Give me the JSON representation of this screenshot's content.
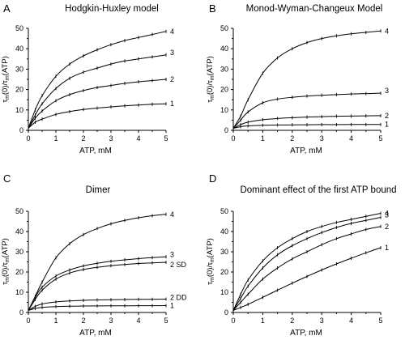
{
  "chart_data": [
    {
      "type": "line",
      "panel": "A",
      "title": "Hodgkin-Huxley model",
      "xlabel": "ATP, mM",
      "ylabel_main": "τ",
      "ylabel_sub1": "m",
      "ylabel_mid": "(0)/τ",
      "ylabel_sub2": "m",
      "ylabel_end": "(ATP)",
      "xlim": [
        0,
        5
      ],
      "ylim": [
        0,
        50
      ],
      "xticks": [
        "0",
        "1",
        "2",
        "3",
        "4",
        "5"
      ],
      "yticks": [
        "0",
        "10",
        "20",
        "30",
        "40",
        "50"
      ],
      "series": [
        {
          "name": "4",
          "x": [
            0,
            0.25,
            0.5,
            1,
            1.5,
            2,
            2.5,
            3,
            3.5,
            4,
            4.5,
            5
          ],
          "y": [
            1,
            10,
            17,
            26.5,
            32.5,
            36.5,
            39.5,
            42,
            44,
            45.5,
            47,
            48.5
          ]
        },
        {
          "name": "3",
          "x": [
            0,
            0.25,
            0.5,
            1,
            1.5,
            2,
            2.5,
            3,
            3.5,
            4,
            4.5,
            5
          ],
          "y": [
            1,
            7.5,
            13,
            20.5,
            25.5,
            28.5,
            30.5,
            32.5,
            34,
            35,
            36,
            37
          ]
        },
        {
          "name": "2",
          "x": [
            0,
            0.25,
            0.5,
            1,
            1.5,
            2,
            2.5,
            3,
            3.5,
            4,
            4.5,
            5
          ],
          "y": [
            1,
            6,
            9.5,
            14.5,
            17.5,
            19.5,
            21,
            22,
            23,
            23.8,
            24.4,
            25
          ]
        },
        {
          "name": "1",
          "x": [
            0,
            0.25,
            0.5,
            1,
            1.5,
            2,
            2.5,
            3,
            3.5,
            4,
            4.5,
            5
          ],
          "y": [
            1,
            4,
            5.5,
            7.8,
            9.2,
            10.2,
            10.9,
            11.5,
            12,
            12.4,
            12.8,
            13
          ]
        }
      ]
    },
    {
      "type": "line",
      "panel": "B",
      "title": "Monod-Wyman-Changeux Model",
      "xlabel": "ATP, mM",
      "ylabel_main": "τ",
      "ylabel_sub1": "m",
      "ylabel_mid": "(0)/τ",
      "ylabel_sub2": "m",
      "ylabel_end": "(ATP)",
      "xlim": [
        0,
        5
      ],
      "ylim": [
        0,
        50
      ],
      "xticks": [
        "0",
        "1",
        "2",
        "3",
        "4",
        "5"
      ],
      "yticks": [
        "0",
        "10",
        "20",
        "30",
        "40",
        "50"
      ],
      "series": [
        {
          "name": "4",
          "x": [
            0,
            0.25,
            0.5,
            1,
            1.5,
            2,
            2.5,
            3,
            3.5,
            4,
            4.5,
            5
          ],
          "y": [
            1,
            7,
            15,
            28,
            35.5,
            40,
            43,
            45,
            46.3,
            47.3,
            48,
            48.7
          ]
        },
        {
          "name": "3",
          "x": [
            0,
            0.25,
            0.5,
            1,
            1.5,
            2,
            2.5,
            3,
            3.5,
            4,
            4.5,
            5
          ],
          "y": [
            1,
            5,
            9,
            13.5,
            15.3,
            16.2,
            16.8,
            17.2,
            17.5,
            17.8,
            18,
            18.2
          ]
        },
        {
          "name": "2",
          "x": [
            0,
            0.25,
            0.5,
            1,
            1.5,
            2,
            2.5,
            3,
            3.5,
            4,
            4.5,
            5
          ],
          "y": [
            1,
            2.8,
            4,
            5.2,
            5.8,
            6.2,
            6.5,
            6.7,
            6.9,
            7,
            7.1,
            7.2
          ]
        },
        {
          "name": "1",
          "x": [
            0,
            0.25,
            0.5,
            1,
            1.5,
            2,
            2.5,
            3,
            3.5,
            4,
            4.5,
            5
          ],
          "y": [
            1,
            1.8,
            2.2,
            2.5,
            2.6,
            2.7,
            2.75,
            2.8,
            2.8,
            2.85,
            2.85,
            2.9
          ]
        }
      ]
    },
    {
      "type": "line",
      "panel": "C",
      "title": "Dimer",
      "xlabel": "ATP, mM",
      "ylabel_main": "τ",
      "ylabel_sub1": "m",
      "ylabel_mid": "(0)/τ",
      "ylabel_sub2": "m",
      "ylabel_end": "(ATP)",
      "xlim": [
        0,
        5
      ],
      "ylim": [
        0,
        50
      ],
      "xticks": [
        "0",
        "1",
        "2",
        "3",
        "4",
        "5"
      ],
      "yticks": [
        "0",
        "10",
        "20",
        "30",
        "40",
        "50"
      ],
      "series": [
        {
          "name": "4",
          "x": [
            0,
            0.25,
            0.5,
            1,
            1.5,
            2,
            2.5,
            3,
            3.5,
            4,
            4.5,
            5
          ],
          "y": [
            1,
            8,
            15,
            27,
            34,
            38.5,
            41.5,
            43.8,
            45.5,
            46.8,
            47.8,
            48.5
          ]
        },
        {
          "name": "3",
          "x": [
            0,
            0.25,
            0.5,
            1,
            1.5,
            2,
            2.5,
            3,
            3.5,
            4,
            4.5,
            5
          ],
          "y": [
            1,
            7.5,
            12.5,
            18,
            21,
            23,
            24.3,
            25.3,
            26,
            26.6,
            27.1,
            27.5
          ]
        },
        {
          "name": "2 SD",
          "x": [
            0,
            0.25,
            0.5,
            1,
            1.5,
            2,
            2.5,
            3,
            3.5,
            4,
            4.5,
            5
          ],
          "y": [
            1,
            6.5,
            11,
            16.5,
            19.5,
            21.2,
            22.3,
            23.1,
            23.7,
            24.2,
            24.5,
            24.8
          ]
        },
        {
          "name": "2 DD",
          "x": [
            0,
            0.25,
            0.5,
            1,
            1.5,
            2,
            2.5,
            3,
            3.5,
            4,
            4.5,
            5
          ],
          "y": [
            1,
            3,
            4.2,
            5.2,
            5.7,
            6,
            6.2,
            6.3,
            6.4,
            6.5,
            6.5,
            6.6
          ]
        },
        {
          "name": "1",
          "x": [
            0,
            0.25,
            0.5,
            1,
            1.5,
            2,
            2.5,
            3,
            3.5,
            4,
            4.5,
            5
          ],
          "y": [
            1,
            2,
            2.5,
            2.9,
            3.1,
            3.2,
            3.25,
            3.3,
            3.3,
            3.35,
            3.35,
            3.4
          ]
        }
      ]
    },
    {
      "type": "line",
      "panel": "D",
      "title": "Dominant effect of the first ATP bound",
      "xlabel": "ATP, mM",
      "ylabel_main": "τ",
      "ylabel_sub1": "m",
      "ylabel_mid": "(0)/τ",
      "ylabel_sub2": "m",
      "ylabel_end": "(ATP)",
      "xlim": [
        0,
        5
      ],
      "ylim": [
        0,
        50
      ],
      "xticks": [
        "0",
        "1",
        "2",
        "3",
        "4",
        "5"
      ],
      "yticks": [
        "0",
        "10",
        "20",
        "30",
        "40",
        "50"
      ],
      "series": [
        {
          "name": "4",
          "x": [
            0,
            0.25,
            0.5,
            1,
            1.5,
            2,
            2.5,
            3,
            3.5,
            4,
            4.5,
            5
          ],
          "y": [
            1,
            9,
            16,
            25.5,
            32,
            36.5,
            40,
            42.5,
            44.5,
            46,
            47.5,
            49
          ]
        },
        {
          "name": "3",
          "x": [
            0,
            0.25,
            0.5,
            1,
            1.5,
            2,
            2.5,
            3,
            3.5,
            4,
            4.5,
            5
          ],
          "y": [
            1,
            7,
            13,
            22,
            28.5,
            33,
            36.5,
            39.5,
            42,
            44,
            45.5,
            47
          ]
        },
        {
          "name": "2",
          "x": [
            0,
            0.25,
            0.5,
            1,
            1.5,
            2,
            2.5,
            3,
            3.5,
            4,
            4.5,
            5
          ],
          "y": [
            1,
            5,
            9,
            16.5,
            22,
            26.5,
            30,
            33.5,
            36.5,
            38.8,
            41,
            42.5
          ]
        },
        {
          "name": "1",
          "x": [
            0,
            0.25,
            0.5,
            1,
            1.5,
            2,
            2.5,
            3,
            3.5,
            4,
            4.5,
            5
          ],
          "y": [
            1,
            2.5,
            4,
            7.5,
            11,
            14.5,
            17.8,
            21,
            24,
            26.8,
            29.5,
            32
          ]
        }
      ]
    }
  ]
}
